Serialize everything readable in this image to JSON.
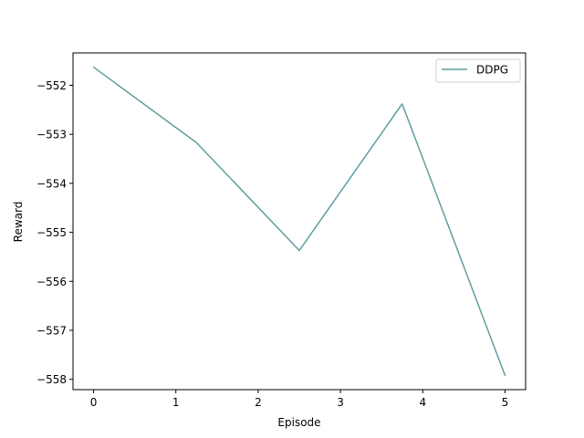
{
  "chart_data": {
    "type": "line",
    "title": "",
    "xlabel": "Episode",
    "ylabel": "Reward",
    "xlim": [
      -0.25,
      5.25
    ],
    "ylim": [
      -558.21,
      -551.34
    ],
    "xticks": [
      0,
      1,
      2,
      3,
      4,
      5
    ],
    "xtick_labels": [
      "0",
      "1",
      "2",
      "3",
      "4",
      "5"
    ],
    "yticks": [
      -552,
      -553,
      -554,
      -555,
      -556,
      -557,
      -558
    ],
    "ytick_labels": [
      "−552",
      "−553",
      "−554",
      "−555",
      "−556",
      "−557",
      "−558"
    ],
    "grid": false,
    "legend_position": "top-right",
    "series": [
      {
        "name": "DDPG",
        "color": "#5f9ea0",
        "x": [
          0,
          1.25,
          2.5,
          3.75,
          5
        ],
        "y": [
          -551.63,
          -553.17,
          -555.37,
          -552.38,
          -557.92
        ]
      }
    ]
  }
}
